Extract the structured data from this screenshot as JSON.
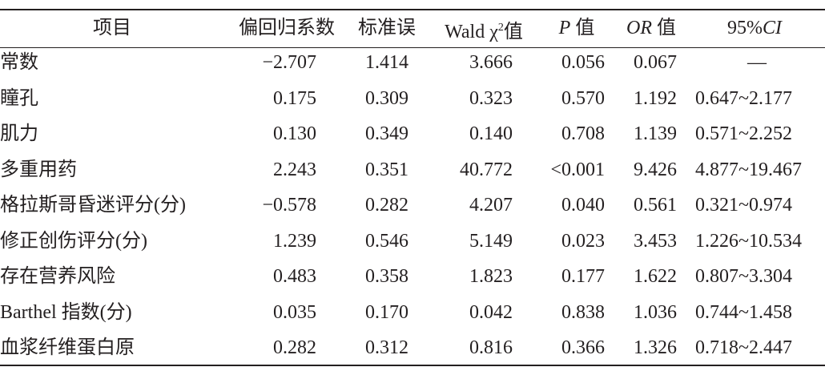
{
  "table": {
    "headers": [
      "项目",
      "偏回归系数",
      "标准误",
      [
        "Wald χ",
        "2",
        "值"
      ],
      [
        "P",
        "值"
      ],
      [
        "OR",
        "值"
      ],
      [
        "95%",
        "CI"
      ]
    ],
    "rows": [
      [
        "常数",
        "−2.707",
        "1.414",
        "3.666",
        "0.056",
        "0.067",
        "—"
      ],
      [
        "瞳孔",
        "0.175",
        "0.309",
        "0.323",
        "0.570",
        "1.192",
        "0.647~2.177"
      ],
      [
        "肌力",
        "0.130",
        "0.349",
        "0.140",
        "0.708",
        "1.139",
        "0.571~2.252"
      ],
      [
        "多重用药",
        "2.243",
        "0.351",
        "40.772",
        "<0.001",
        "9.426",
        "4.877~19.467"
      ],
      [
        "格拉斯哥昏迷评分(分)",
        "−0.578",
        "0.282",
        "4.207",
        "0.040",
        "0.561",
        "0.321~0.974"
      ],
      [
        "修正创伤评分(分)",
        "1.239",
        "0.546",
        "5.149",
        "0.023",
        "3.453",
        "1.226~10.534"
      ],
      [
        "存在营养风险",
        "0.483",
        "0.358",
        "1.823",
        "0.177",
        "1.622",
        "0.807~3.304"
      ],
      [
        "Barthel 指数(分)",
        "0.035",
        "0.170",
        "0.042",
        "0.838",
        "1.036",
        "0.744~1.458"
      ],
      [
        "血浆纤维蛋白原",
        "0.282",
        "0.312",
        "0.816",
        "0.366",
        "1.326",
        "0.718~2.447"
      ]
    ]
  }
}
